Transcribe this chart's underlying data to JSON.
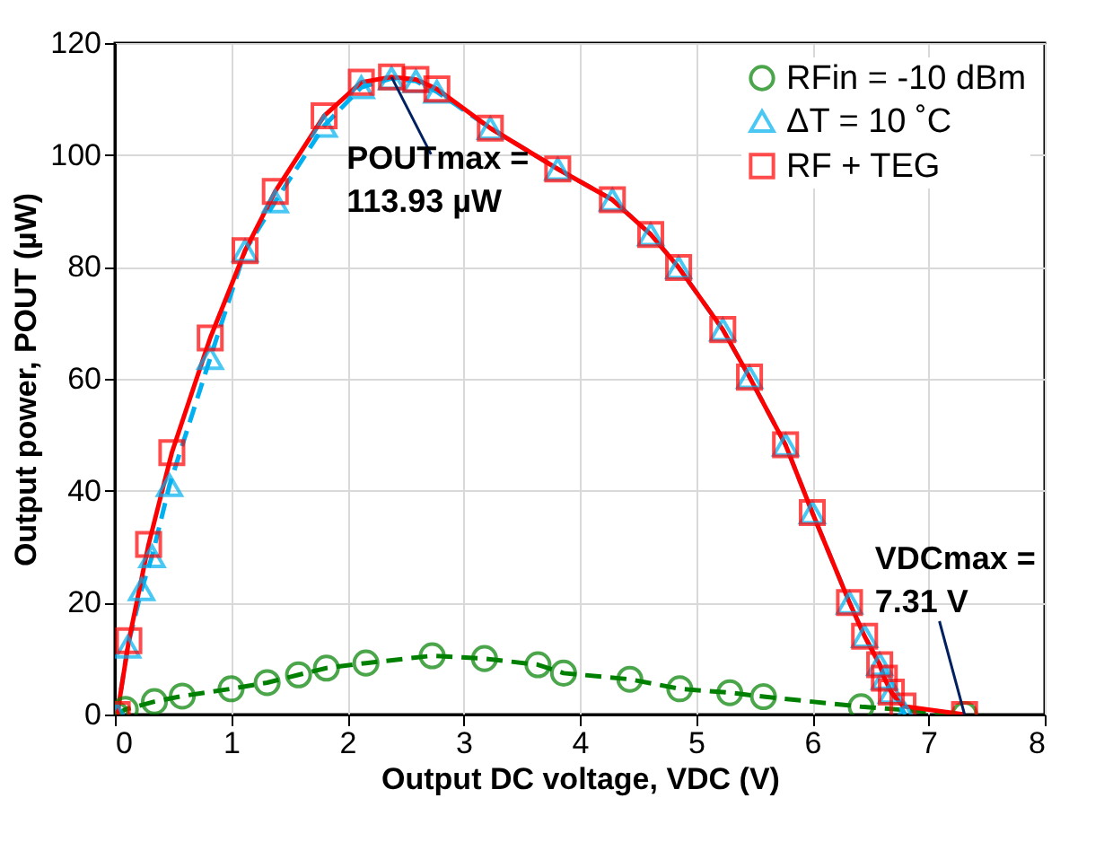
{
  "chart_data": {
    "type": "line",
    "xlabel": "Output DC voltage, VDC (V)",
    "ylabel": "Output power, POUT (µW)",
    "xlim": [
      0,
      8
    ],
    "xticks": [
      0,
      1,
      2,
      3,
      4,
      5,
      6,
      7,
      8
    ],
    "ylim": [
      0,
      120
    ],
    "yticks": [
      0,
      20,
      40,
      60,
      80,
      100,
      120
    ],
    "grid": true,
    "legend": "top right",
    "series": [
      {
        "name": "RFin = -10 dBm",
        "color": "#008000",
        "marker": "circle",
        "line_style": "dashed",
        "x": [
          0.01,
          0.09,
          0.34,
          0.58,
          1.0,
          1.31,
          1.58,
          1.82,
          2.16,
          2.73,
          3.18,
          3.64,
          3.86,
          4.43,
          4.86,
          5.29,
          5.58,
          6.42,
          7.31
        ],
        "values": [
          0,
          0.9,
          2.3,
          3.3,
          4.6,
          5.7,
          7.1,
          8.3,
          9.2,
          10.5,
          10.0,
          8.9,
          7.4,
          6.3,
          4.6,
          3.9,
          3.2,
          1.4,
          0
        ]
      },
      {
        "name": "ΔT = 10 ˚C",
        "color": "#00b0f0",
        "marker": "triangle",
        "line_style": "dashed",
        "x": [
          0.02,
          0.11,
          0.23,
          0.32,
          0.47,
          0.82,
          1.12,
          1.38,
          1.8,
          2.12,
          2.38,
          2.59,
          2.77,
          3.23,
          3.81,
          4.28,
          4.61,
          4.85,
          5.23,
          5.46,
          5.77,
          6.0,
          6.32,
          6.45,
          6.58,
          6.62,
          6.68,
          6.8
        ],
        "values": [
          0,
          12.1,
          22.4,
          28.3,
          41.0,
          63.7,
          82.9,
          91.7,
          105.2,
          112.1,
          113.7,
          113.2,
          111.3,
          104.8,
          97.5,
          92.0,
          85.8,
          79.9,
          68.8,
          60.3,
          48.2,
          36.1,
          20.0,
          14.0,
          9.0,
          6.5,
          4.0,
          0
        ]
      },
      {
        "name": "RF + TEG",
        "color": "#ff0000",
        "marker": "square",
        "line_style": "solid",
        "x": [
          0.02,
          0.12,
          0.29,
          0.49,
          0.82,
          1.12,
          1.38,
          1.8,
          2.12,
          2.38,
          2.59,
          2.77,
          3.23,
          3.81,
          4.28,
          4.61,
          4.85,
          5.23,
          5.46,
          5.77,
          6.0,
          6.32,
          6.45,
          6.58,
          6.62,
          6.68,
          6.78,
          7.31
        ],
        "values": [
          0,
          13.2,
          30.4,
          46.8,
          67.3,
          82.9,
          93.5,
          107.0,
          113.0,
          113.93,
          113.5,
          111.8,
          104.8,
          97.5,
          92.0,
          85.8,
          79.9,
          68.8,
          60.3,
          48.2,
          36.1,
          20.0,
          14.0,
          8.9,
          6.5,
          4.0,
          1.5,
          0
        ]
      }
    ],
    "annotations": [
      {
        "text": "POUTmax =\n113.93 µW",
        "x": 2.38,
        "y": 113.93
      },
      {
        "text": "VDCmax =\n7.31 V",
        "x": 7.31,
        "y": 0
      }
    ]
  }
}
